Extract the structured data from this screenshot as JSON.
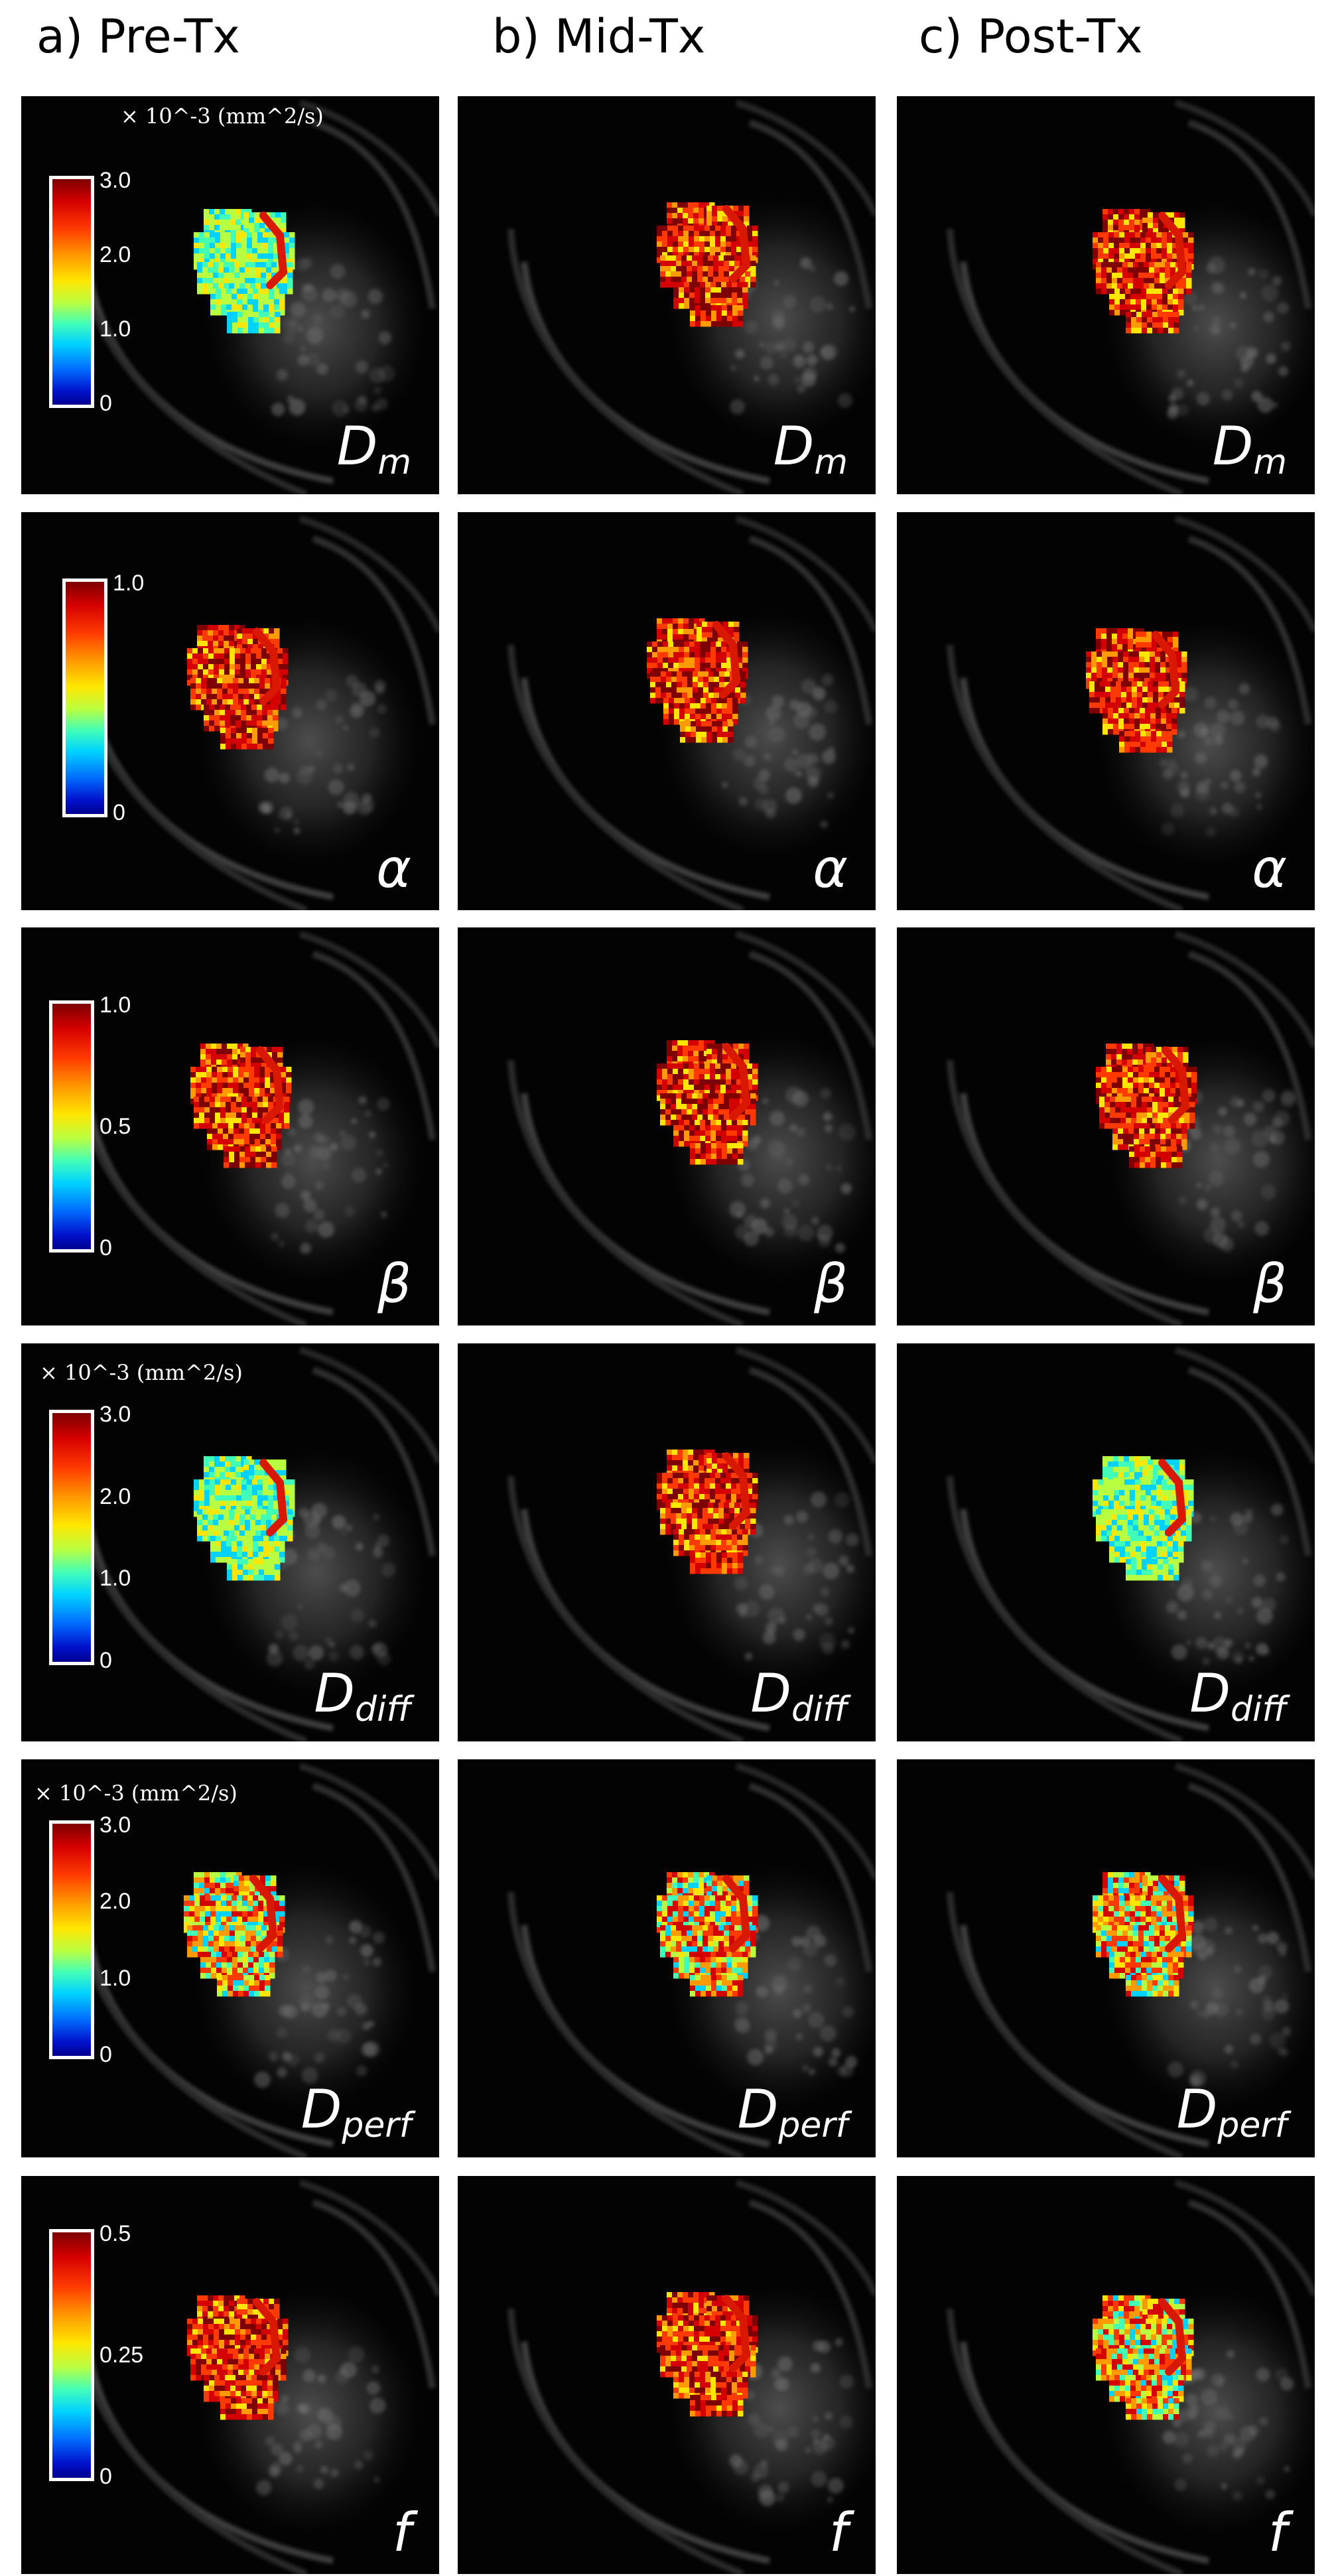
{
  "columns": [
    {
      "label": "a) Pre-Tx"
    },
    {
      "label": "b) Mid-Tx"
    },
    {
      "label": "c) Post-Tx"
    }
  ],
  "rows": [
    {
      "param": {
        "main": "D",
        "sub": "m"
      },
      "units": "× 10^-3 (mm^2/s)",
      "colorbar_ticks": [
        "3.0",
        "2.0",
        "1.0",
        "0"
      ],
      "range": [
        0,
        3.0
      ]
    },
    {
      "param": {
        "main": "α",
        "sub": ""
      },
      "units": "",
      "colorbar_ticks": [
        "1.0",
        "0"
      ],
      "range": [
        0,
        1.0
      ]
    },
    {
      "param": {
        "main": "β",
        "sub": ""
      },
      "units": "",
      "colorbar_ticks": [
        "1.0",
        "0.5",
        "0"
      ],
      "range": [
        0,
        1.0
      ]
    },
    {
      "param": {
        "main": "D",
        "sub": "diff"
      },
      "units": "× 10^-3 (mm^2/s)",
      "colorbar_ticks": [
        "3.0",
        "2.0",
        "1.0",
        "0"
      ],
      "range": [
        0,
        3.0
      ]
    },
    {
      "param": {
        "main": "D",
        "sub": "perf"
      },
      "units": "× 10^-3 (mm^2/s)",
      "colorbar_ticks": [
        "3.0",
        "2.0",
        "1.0",
        "0"
      ],
      "range": [
        0,
        3.0
      ]
    },
    {
      "param": {
        "main": "f",
        "sub": ""
      },
      "units": "",
      "colorbar_ticks": [
        "0.5",
        "0.25",
        "0"
      ],
      "range": [
        0,
        0.5
      ]
    }
  ],
  "colors": {
    "background": "#ffffff",
    "panel": "#030303",
    "text": "#000000",
    "overlay_text": "#ffffff",
    "colormap": [
      "#00008f",
      "#0012cc",
      "#0070ff",
      "#00d2ff",
      "#42ffb8",
      "#b8ff42",
      "#ffe600",
      "#ff9a00",
      "#ff3a00",
      "#d40000",
      "#7f0000"
    ]
  }
}
